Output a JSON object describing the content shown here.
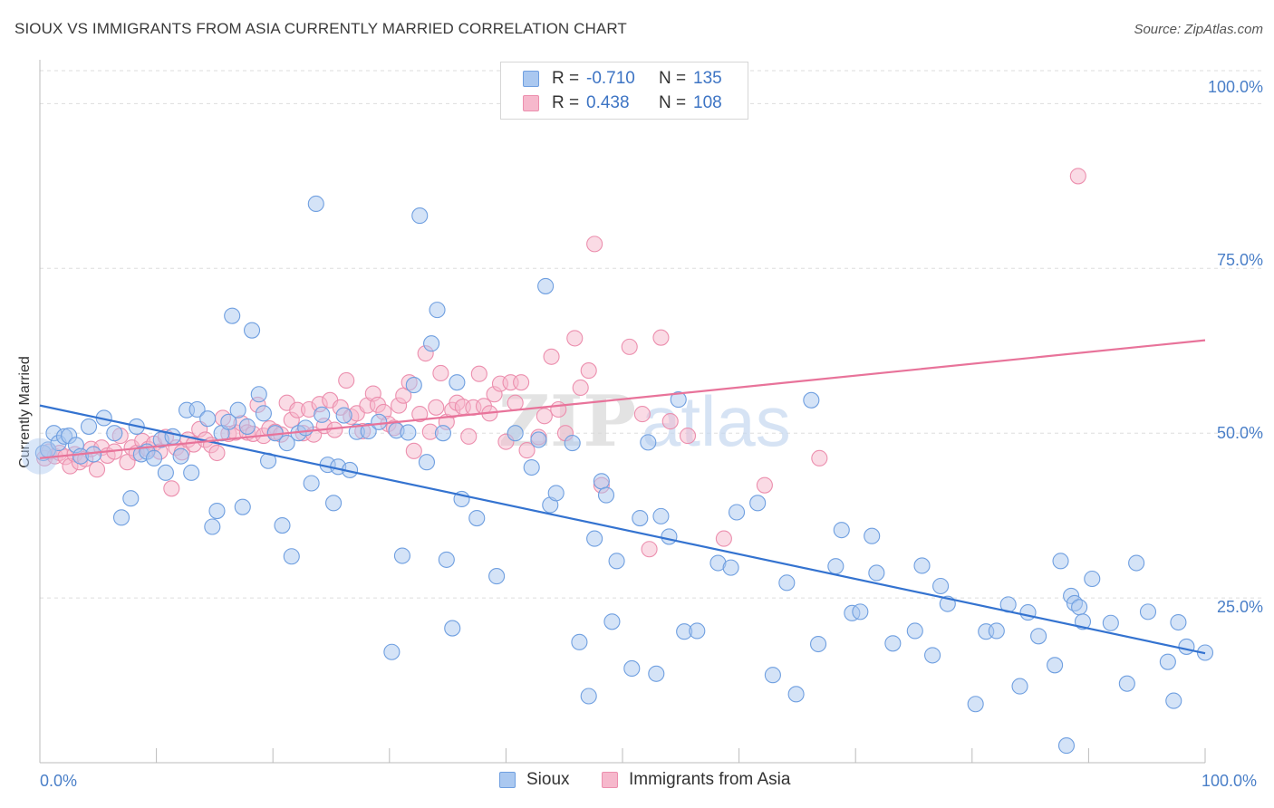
{
  "header": {
    "title": "SIOUX VS IMMIGRANTS FROM ASIA CURRENTLY MARRIED CORRELATION CHART",
    "source": "Source: ZipAtlas.com"
  },
  "watermark": {
    "part1": "ZIP",
    "part2": "atlas"
  },
  "legend": {
    "rows": [
      {
        "r_label": "R =",
        "r_value": "-0.710",
        "n_label": "N =",
        "n_value": "135",
        "color": "#aac8f0"
      },
      {
        "r_label": "R =",
        "r_value": "0.438",
        "n_label": "N =",
        "n_value": "108",
        "color": "#f6b8cc"
      }
    ]
  },
  "bottom_legend": {
    "sioux": "Sioux",
    "asia": "Immigrants from Asia"
  },
  "colors": {
    "sioux_fill": "#aac8f0",
    "sioux_stroke": "#6f9fe0",
    "sioux_line": "#3473d0",
    "asia_fill": "#f6b8cc",
    "asia_stroke": "#ec8fae",
    "asia_line": "#e8739a",
    "tick_label": "#4a7fc8",
    "grid": "#dddddd"
  },
  "chart_data": {
    "type": "scatter",
    "title": "SIOUX VS IMMIGRANTS FROM ASIA CURRENTLY MARRIED CORRELATION CHART",
    "xlabel": "",
    "ylabel": "Currently Married",
    "xlim": [
      0,
      100
    ],
    "ylim": [
      0,
      105
    ],
    "x_tick_labels": [
      "0.0%",
      "100.0%"
    ],
    "y_tick_labels": [
      "100.0%",
      "75.0%",
      "50.0%",
      "25.0%"
    ],
    "y_ticks": [
      100,
      75,
      50,
      25
    ],
    "grid": true,
    "legend_position": "top-center",
    "series": [
      {
        "name": "Sioux",
        "r": -0.71,
        "n": 135,
        "trend": [
          [
            0,
            54.2
          ],
          [
            100,
            16.6
          ]
        ],
        "points": [
          [
            0.3,
            47
          ],
          [
            0.7,
            47.5
          ],
          [
            1.2,
            50
          ],
          [
            1.6,
            48.5
          ],
          [
            2.1,
            49.5
          ],
          [
            2.5,
            49.6
          ],
          [
            3.1,
            48.2
          ],
          [
            3.5,
            46.5
          ],
          [
            4.2,
            51
          ],
          [
            4.6,
            46.8
          ],
          [
            5.5,
            52.3
          ],
          [
            6.4,
            50
          ],
          [
            7.0,
            37.2
          ],
          [
            7.8,
            40.1
          ],
          [
            8.3,
            51
          ],
          [
            8.7,
            46.8
          ],
          [
            9.2,
            47.2
          ],
          [
            9.8,
            46.2
          ],
          [
            10.4,
            49
          ],
          [
            10.8,
            44
          ],
          [
            11.4,
            49.5
          ],
          [
            12.1,
            46.5
          ],
          [
            12.6,
            53.5
          ],
          [
            13.0,
            44
          ],
          [
            13.5,
            53.6
          ],
          [
            14.4,
            52.2
          ],
          [
            14.8,
            35.8
          ],
          [
            15.2,
            38.2
          ],
          [
            15.6,
            50
          ],
          [
            16.2,
            51.7
          ],
          [
            16.5,
            67.8
          ],
          [
            17.0,
            53.5
          ],
          [
            17.4,
            38.8
          ],
          [
            17.8,
            51
          ],
          [
            18.2,
            65.6
          ],
          [
            18.8,
            55.9
          ],
          [
            19.2,
            53
          ],
          [
            19.6,
            45.8
          ],
          [
            20.2,
            50
          ],
          [
            20.8,
            36
          ],
          [
            21.2,
            48.5
          ],
          [
            21.6,
            31.3
          ],
          [
            22.2,
            50
          ],
          [
            22.8,
            50.8
          ],
          [
            23.3,
            42.4
          ],
          [
            23.7,
            84.8
          ],
          [
            24.2,
            52.8
          ],
          [
            24.7,
            45.2
          ],
          [
            25.2,
            39.4
          ],
          [
            25.6,
            44.9
          ],
          [
            26.1,
            52.7
          ],
          [
            26.6,
            44.4
          ],
          [
            27.2,
            50.2
          ],
          [
            28.2,
            50.3
          ],
          [
            29.1,
            51.7
          ],
          [
            30.2,
            16.8
          ],
          [
            30.6,
            50.4
          ],
          [
            31.1,
            31.4
          ],
          [
            31.6,
            50.1
          ],
          [
            32.1,
            57.3
          ],
          [
            32.6,
            83
          ],
          [
            33.2,
            45.6
          ],
          [
            33.6,
            63.6
          ],
          [
            34.1,
            68.7
          ],
          [
            34.6,
            50
          ],
          [
            34.9,
            30.8
          ],
          [
            35.4,
            20.4
          ],
          [
            35.8,
            57.7
          ],
          [
            36.2,
            40
          ],
          [
            37.5,
            37.1
          ],
          [
            39.2,
            28.3
          ],
          [
            40.8,
            50
          ],
          [
            42.2,
            44.8
          ],
          [
            42.8,
            49
          ],
          [
            43.4,
            72.3
          ],
          [
            43.8,
            39.1
          ],
          [
            44.3,
            40.9
          ],
          [
            45.7,
            48.5
          ],
          [
            46.3,
            18.3
          ],
          [
            47.1,
            10.1
          ],
          [
            47.6,
            34
          ],
          [
            48.2,
            42.7
          ],
          [
            48.6,
            40.6
          ],
          [
            49.1,
            21.4
          ],
          [
            49.5,
            30.6
          ],
          [
            50.8,
            14.3
          ],
          [
            51.5,
            37.1
          ],
          [
            52.2,
            48.6
          ],
          [
            52.9,
            13.5
          ],
          [
            53.3,
            37.4
          ],
          [
            54.0,
            34.3
          ],
          [
            54.8,
            55.1
          ],
          [
            55.3,
            19.9
          ],
          [
            56.4,
            20
          ],
          [
            58.2,
            30.3
          ],
          [
            59.3,
            29.6
          ],
          [
            59.8,
            38
          ],
          [
            61.6,
            39.4
          ],
          [
            62.9,
            13.3
          ],
          [
            64.1,
            27.3
          ],
          [
            64.9,
            10.4
          ],
          [
            66.2,
            55
          ],
          [
            66.8,
            18
          ],
          [
            68.3,
            29.8
          ],
          [
            68.8,
            35.3
          ],
          [
            69.7,
            22.7
          ],
          [
            70.4,
            22.9
          ],
          [
            71.4,
            34.4
          ],
          [
            71.8,
            28.8
          ],
          [
            73.2,
            18.1
          ],
          [
            75.1,
            20
          ],
          [
            75.7,
            29.9
          ],
          [
            76.6,
            16.3
          ],
          [
            77.3,
            26.8
          ],
          [
            77.9,
            24.1
          ],
          [
            80.3,
            8.9
          ],
          [
            81.2,
            19.9
          ],
          [
            82.1,
            20
          ],
          [
            83.1,
            24
          ],
          [
            84.1,
            11.6
          ],
          [
            84.8,
            22.8
          ],
          [
            85.7,
            19.2
          ],
          [
            87.1,
            14.8
          ],
          [
            87.6,
            30.6
          ],
          [
            88.1,
            2.6
          ],
          [
            88.5,
            25.3
          ],
          [
            88.8,
            24.2
          ],
          [
            89.2,
            23.6
          ],
          [
            89.5,
            21.4
          ],
          [
            90.3,
            27.9
          ],
          [
            91.9,
            21.2
          ],
          [
            93.3,
            12
          ],
          [
            94.1,
            30.3
          ],
          [
            95.1,
            22.9
          ],
          [
            96.8,
            15.3
          ],
          [
            97.3,
            9.4
          ],
          [
            97.7,
            21.3
          ],
          [
            98.4,
            17.6
          ],
          [
            100,
            16.7
          ]
        ]
      },
      {
        "name": "Immigrants from Asia",
        "r": 0.438,
        "n": 108,
        "trend": [
          [
            0,
            46.2
          ],
          [
            100,
            64.1
          ]
        ],
        "points": [
          [
            0.4,
            46.2
          ],
          [
            0.8,
            47.2
          ],
          [
            1.3,
            46.5
          ],
          [
            1.7,
            47
          ],
          [
            2.2,
            46.4
          ],
          [
            2.6,
            45
          ],
          [
            3.0,
            46.8
          ],
          [
            3.4,
            45.6
          ],
          [
            3.9,
            46.1
          ],
          [
            4.4,
            47.6
          ],
          [
            4.9,
            44.5
          ],
          [
            5.3,
            47.8
          ],
          [
            5.8,
            46.6
          ],
          [
            6.4,
            47.2
          ],
          [
            6.9,
            49.6
          ],
          [
            7.5,
            45.6
          ],
          [
            7.9,
            47.8
          ],
          [
            8.3,
            47
          ],
          [
            8.8,
            48.8
          ],
          [
            9.3,
            47.6
          ],
          [
            9.8,
            48.4
          ],
          [
            10.3,
            47.2
          ],
          [
            10.8,
            49.4
          ],
          [
            11.3,
            41.6
          ],
          [
            11.7,
            47.8
          ],
          [
            12.2,
            47.1
          ],
          [
            12.7,
            49
          ],
          [
            13.2,
            48.3
          ],
          [
            13.7,
            50.6
          ],
          [
            14.2,
            49
          ],
          [
            14.7,
            48.2
          ],
          [
            15.2,
            47
          ],
          [
            15.7,
            52.3
          ],
          [
            16.2,
            49.9
          ],
          [
            16.8,
            50.1
          ],
          [
            17.3,
            51.5
          ],
          [
            17.8,
            50.1
          ],
          [
            18.3,
            49.9
          ],
          [
            18.7,
            54.3
          ],
          [
            19.2,
            49.6
          ],
          [
            19.7,
            50.7
          ],
          [
            20.2,
            50.2
          ],
          [
            20.7,
            49.8
          ],
          [
            21.2,
            54.6
          ],
          [
            21.6,
            52
          ],
          [
            22.1,
            53.5
          ],
          [
            22.6,
            50
          ],
          [
            23.1,
            53.6
          ],
          [
            23.5,
            49.8
          ],
          [
            24.0,
            54.4
          ],
          [
            24.4,
            51.1
          ],
          [
            24.9,
            55
          ],
          [
            25.3,
            50.5
          ],
          [
            25.8,
            53.9
          ],
          [
            26.3,
            58
          ],
          [
            26.7,
            52.5
          ],
          [
            27.2,
            53
          ],
          [
            27.7,
            50.3
          ],
          [
            28.1,
            54.2
          ],
          [
            28.6,
            56
          ],
          [
            29.0,
            54.3
          ],
          [
            29.5,
            53.2
          ],
          [
            29.9,
            51.4
          ],
          [
            30.4,
            50.8
          ],
          [
            30.8,
            54.2
          ],
          [
            31.2,
            55.7
          ],
          [
            31.7,
            57.7
          ],
          [
            32.1,
            47.3
          ],
          [
            32.6,
            52.9
          ],
          [
            33.1,
            62.1
          ],
          [
            33.5,
            50.2
          ],
          [
            34.0,
            53.9
          ],
          [
            34.4,
            59.1
          ],
          [
            34.9,
            51.7
          ],
          [
            35.4,
            53.5
          ],
          [
            35.8,
            54.6
          ],
          [
            36.3,
            54
          ],
          [
            36.8,
            49.5
          ],
          [
            37.2,
            53.9
          ],
          [
            37.7,
            59
          ],
          [
            38.1,
            54.1
          ],
          [
            38.6,
            53
          ],
          [
            39.0,
            55.9
          ],
          [
            39.5,
            57.5
          ],
          [
            40.0,
            48.7
          ],
          [
            40.4,
            57.7
          ],
          [
            40.8,
            54.6
          ],
          [
            41.3,
            57.7
          ],
          [
            41.8,
            47.4
          ],
          [
            42.8,
            49.4
          ],
          [
            43.3,
            52.6
          ],
          [
            43.9,
            61.6
          ],
          [
            44.5,
            53.6
          ],
          [
            45.1,
            50
          ],
          [
            45.9,
            64.4
          ],
          [
            46.4,
            56.9
          ],
          [
            47.1,
            59.5
          ],
          [
            47.6,
            78.7
          ],
          [
            48.2,
            42.1
          ],
          [
            50.6,
            63.1
          ],
          [
            51.7,
            52.9
          ],
          [
            52.3,
            32.4
          ],
          [
            53.3,
            64.5
          ],
          [
            54.1,
            51.8
          ],
          [
            55.6,
            49.6
          ],
          [
            58.7,
            34
          ],
          [
            62.2,
            42.1
          ],
          [
            66.9,
            46.2
          ],
          [
            89.1,
            89
          ]
        ]
      }
    ]
  }
}
